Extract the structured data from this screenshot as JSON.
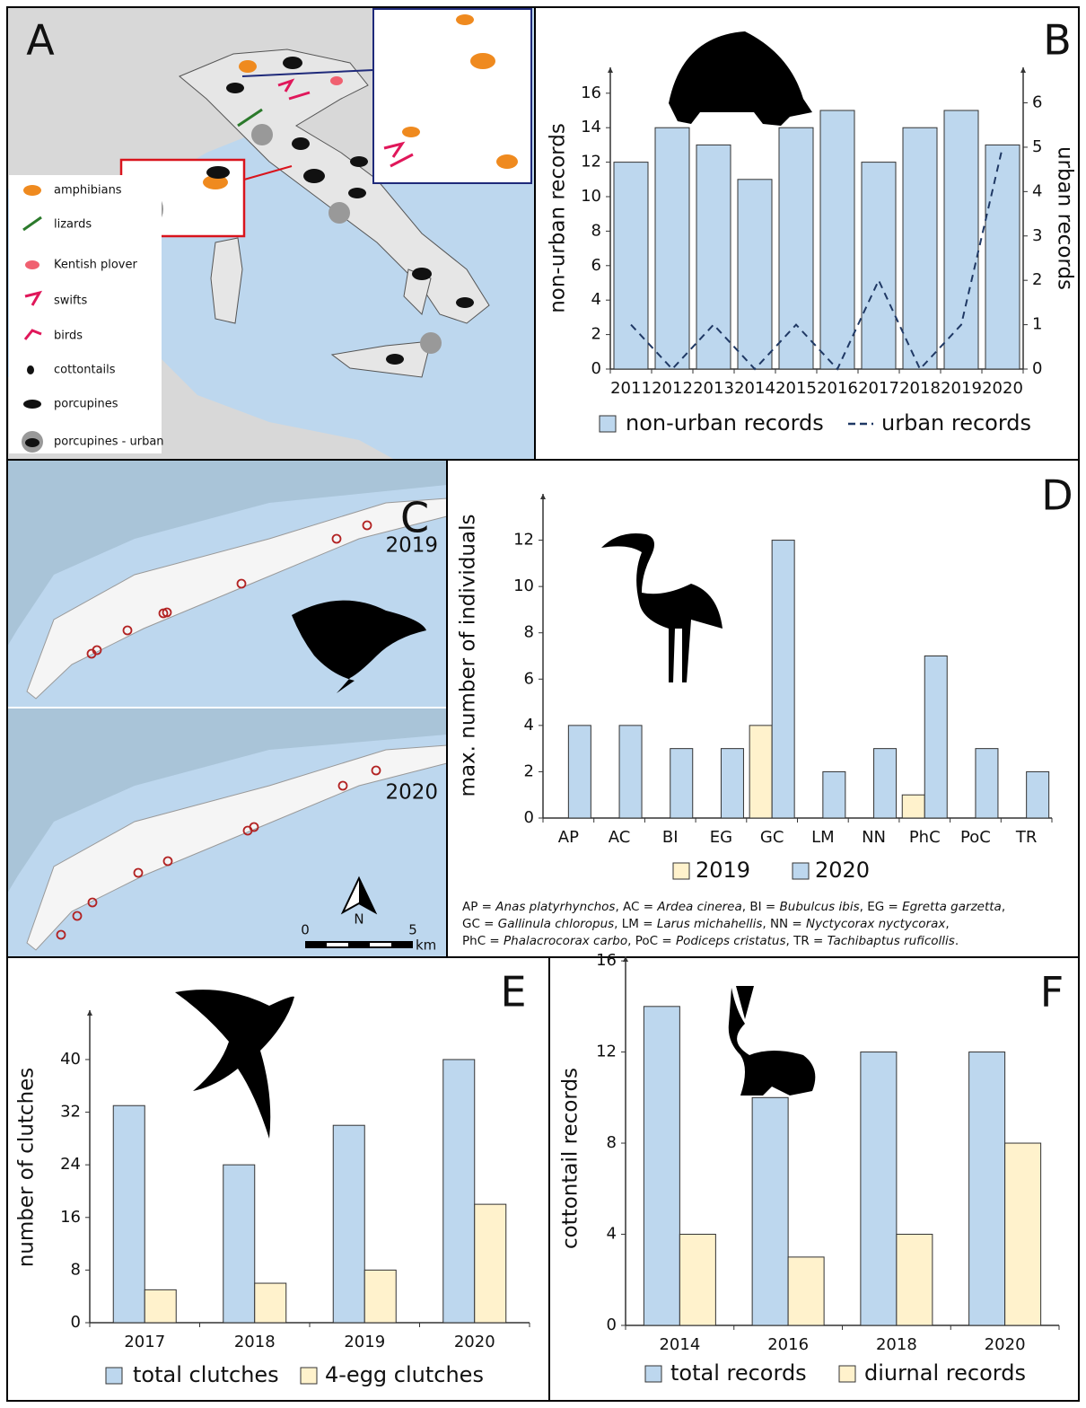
{
  "map_a": {
    "panel": "A",
    "legend": [
      "amphibians",
      "lizards",
      "Kentish plover",
      "swifts",
      "birds",
      "cottontails",
      "porcupines",
      "porcupines - urban"
    ]
  },
  "map_c": {
    "panel": "C",
    "years": [
      "2019",
      "2020"
    ],
    "scale": {
      "ticks": [
        "0",
        "5"
      ],
      "unit": "km"
    },
    "north": "N"
  },
  "chart_data": [
    {
      "type": "bar",
      "panel": "B",
      "categories": [
        "2011",
        "2012",
        "2013",
        "2014",
        "2015",
        "2016",
        "2017",
        "2018",
        "2019",
        "2020"
      ],
      "series": [
        {
          "name": "non-urban records",
          "color": "#bdd7ee",
          "values": [
            12,
            14,
            13,
            11,
            14,
            15,
            12,
            14,
            15,
            13
          ]
        },
        {
          "name": "urban records",
          "type": "line",
          "dash": true,
          "axis": "y2",
          "color": "#1f3864",
          "values": [
            1,
            0,
            1,
            0,
            1,
            0,
            2,
            0,
            1,
            5
          ]
        }
      ],
      "ylabel": "non-urban records",
      "y2label": "urban records",
      "ylim": [
        0,
        17.5
      ],
      "yticks": [
        0,
        2,
        4,
        6,
        8,
        10,
        12,
        14,
        16
      ],
      "y2lim": [
        0,
        6.8
      ],
      "y2ticks": [
        0,
        1,
        2,
        3,
        4,
        5,
        6
      ]
    },
    {
      "type": "bar",
      "panel": "D",
      "categories": [
        "AP",
        "AC",
        "BI",
        "EG",
        "GC",
        "LM",
        "NN",
        "PhC",
        "PoC",
        "TR"
      ],
      "series": [
        {
          "name": "2019",
          "color": "#fff2cc",
          "values": [
            null,
            null,
            null,
            null,
            4,
            null,
            null,
            1,
            null,
            null
          ]
        },
        {
          "name": "2020",
          "color": "#bdd7ee",
          "values": [
            4,
            4,
            3,
            3,
            12,
            2,
            3,
            7,
            3,
            2
          ]
        }
      ],
      "ylabel": "max. number of individuals",
      "ylim": [
        0,
        14
      ],
      "yticks": [
        0,
        2,
        4,
        6,
        8,
        10,
        12
      ],
      "footnote": [
        [
          "AP = ",
          "Anas platyrhynchos",
          ", AC = ",
          "Ardea cinerea",
          ", BI = ",
          "Bubulcus ibis",
          ", EG = ",
          "Egretta garzetta",
          ","
        ],
        [
          "GC = ",
          "Gallinula chloropus",
          ", LM = ",
          "Larus michahellis",
          ", NN = ",
          "Nyctycorax nyctycorax",
          ","
        ],
        [
          "PhC = ",
          "Phalacrocorax carbo",
          ", PoC = ",
          "Podiceps cristatus",
          ", TR = ",
          "Tachibaptus ruficollis",
          "."
        ]
      ]
    },
    {
      "type": "bar",
      "panel": "E",
      "categories": [
        "2017",
        "2018",
        "2019",
        "2020"
      ],
      "series": [
        {
          "name": "total clutches",
          "color": "#bdd7ee",
          "values": [
            33,
            24,
            30,
            40
          ]
        },
        {
          "name": "4-egg clutches",
          "color": "#fff2cc",
          "values": [
            5,
            6,
            8,
            18
          ]
        }
      ],
      "ylabel": "number of clutches",
      "ylim": [
        0,
        47.5
      ],
      "yticks": [
        0,
        8,
        16,
        24,
        32,
        40
      ]
    },
    {
      "type": "bar",
      "panel": "F",
      "categories": [
        "2014",
        "2016",
        "2018",
        "2020"
      ],
      "series": [
        {
          "name": "total records",
          "color": "#bdd7ee",
          "values": [
            14,
            10,
            12,
            12
          ]
        },
        {
          "name": "diurnal records",
          "color": "#fff2cc",
          "values": [
            4,
            3,
            4,
            8
          ]
        }
      ],
      "ylabel": "cottontail records",
      "ylim": [
        0,
        16.2
      ],
      "yticks": [
        0,
        4,
        8,
        12,
        16
      ]
    }
  ]
}
